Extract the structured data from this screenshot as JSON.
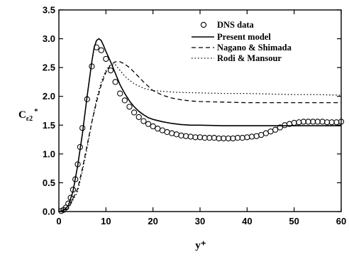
{
  "chart_data": {
    "type": "line",
    "xlabel": "y⁺",
    "ylabel": "C",
    "ylabel_subscript": "ε2",
    "ylabel_superscript": "*",
    "xlim": [
      0,
      60
    ],
    "ylim": [
      0,
      3.5
    ],
    "xticks": [
      "0",
      "10",
      "20",
      "30",
      "40",
      "50",
      "60"
    ],
    "yticks": [
      "0.0",
      "0.5",
      "1.0",
      "1.5",
      "2.0",
      "2.5",
      "3.0",
      "3.5"
    ],
    "grid": false,
    "legend_position": "top-right",
    "series": [
      {
        "name": "DNS data",
        "style": "markers",
        "x": [
          0.5,
          1.0,
          1.5,
          2.0,
          2.5,
          3.0,
          3.5,
          4.0,
          4.5,
          5.0,
          6.0,
          7.0,
          8.0,
          9.0,
          10.0,
          11.0,
          12.0,
          13.0,
          14.0,
          15.0,
          16.0,
          17.0,
          18.0,
          19.0,
          20.0,
          21.0,
          22.0,
          23.0,
          24.0,
          25.0,
          26.0,
          27.0,
          28.0,
          29.0,
          30.0,
          31.0,
          32.0,
          33.0,
          34.0,
          35.0,
          36.0,
          37.0,
          38.0,
          39.0,
          40.0,
          41.0,
          42.0,
          43.0,
          44.0,
          45.0,
          46.0,
          47.0,
          48.0,
          49.0,
          50.0,
          51.0,
          52.0,
          53.0,
          54.0,
          55.0,
          56.0,
          57.0,
          58.0,
          59.0,
          60.0
        ],
        "y": [
          0.01,
          0.03,
          0.07,
          0.14,
          0.24,
          0.38,
          0.56,
          0.82,
          1.12,
          1.45,
          1.95,
          2.52,
          2.85,
          2.8,
          2.65,
          2.45,
          2.25,
          2.05,
          1.93,
          1.82,
          1.72,
          1.64,
          1.57,
          1.52,
          1.48,
          1.44,
          1.41,
          1.38,
          1.36,
          1.34,
          1.32,
          1.31,
          1.3,
          1.29,
          1.29,
          1.28,
          1.28,
          1.28,
          1.27,
          1.27,
          1.27,
          1.27,
          1.28,
          1.28,
          1.29,
          1.3,
          1.31,
          1.33,
          1.36,
          1.39,
          1.42,
          1.46,
          1.5,
          1.52,
          1.54,
          1.55,
          1.56,
          1.56,
          1.56,
          1.56,
          1.56,
          1.55,
          1.55,
          1.55,
          1.56
        ]
      },
      {
        "name": "Present model",
        "style": "solid",
        "x": [
          0,
          1,
          2,
          3,
          4,
          5,
          6,
          7,
          7.5,
          8,
          8.5,
          9,
          9.5,
          10,
          11,
          12,
          13,
          14,
          15,
          16,
          17,
          18,
          19,
          20,
          22,
          24,
          26,
          28,
          30,
          35,
          40,
          45,
          50,
          55,
          60
        ],
        "y": [
          0.0,
          0.02,
          0.1,
          0.35,
          0.8,
          1.35,
          2.0,
          2.6,
          2.85,
          2.97,
          3.0,
          2.97,
          2.88,
          2.78,
          2.6,
          2.4,
          2.2,
          2.05,
          1.92,
          1.82,
          1.74,
          1.68,
          1.63,
          1.6,
          1.56,
          1.53,
          1.51,
          1.5,
          1.5,
          1.49,
          1.49,
          1.49,
          1.49,
          1.49,
          1.49
        ]
      },
      {
        "name": "Nagano & Shimada",
        "style": "dashed",
        "x": [
          0,
          2,
          4,
          5,
          6,
          7,
          8,
          9,
          10,
          11,
          12,
          13,
          14,
          15,
          16,
          18,
          20,
          22,
          24,
          26,
          28,
          30,
          35,
          40,
          45,
          50,
          55,
          60
        ],
        "y": [
          0.0,
          0.05,
          0.4,
          0.75,
          1.15,
          1.55,
          1.9,
          2.2,
          2.42,
          2.55,
          2.6,
          2.6,
          2.56,
          2.5,
          2.42,
          2.25,
          2.1,
          2.02,
          1.97,
          1.94,
          1.92,
          1.91,
          1.9,
          1.89,
          1.89,
          1.89,
          1.89,
          1.89
        ]
      },
      {
        "name": "Rodi & Mansour",
        "style": "dotted",
        "x": [
          0,
          2,
          4,
          5,
          6,
          7,
          8,
          9,
          10,
          11,
          12,
          13,
          14,
          15,
          16,
          18,
          20,
          25,
          30,
          35,
          40,
          45,
          50,
          55,
          60
        ],
        "y": [
          0.0,
          0.05,
          0.35,
          0.7,
          1.1,
          1.55,
          1.95,
          2.25,
          2.45,
          2.55,
          2.55,
          2.45,
          2.35,
          2.28,
          2.22,
          2.14,
          2.1,
          2.07,
          2.06,
          2.05,
          2.05,
          2.04,
          2.03,
          2.03,
          2.02
        ]
      }
    ]
  }
}
